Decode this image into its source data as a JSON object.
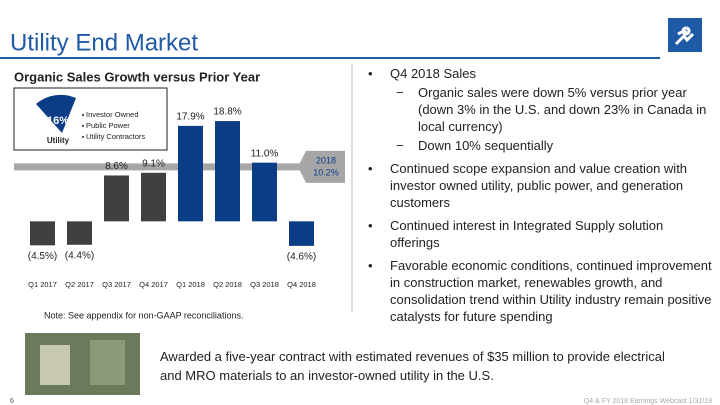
{
  "header": {
    "title": "Utility End Market",
    "page_number": "6",
    "footer": "Q4 & FY 2018 Earnings Webcast 1/31/19"
  },
  "chart_data": {
    "type": "bar",
    "title": "Organic Sales Growth versus Prior Year",
    "categories": [
      "Q1 2017",
      "Q2 2017",
      "Q3 2017",
      "Q4 2017",
      "Q1 2018",
      "Q2 2018",
      "Q3 2018",
      "Q4 2018"
    ],
    "values": [
      -4.5,
      -4.4,
      8.6,
      9.1,
      17.9,
      18.8,
      11.0,
      -4.6
    ],
    "value_labels": [
      "(4.5%)",
      "(4.4%)",
      "8.6%",
      "9.1%",
      "17.9%",
      "18.8%",
      "11.0%",
      "(4.6%)"
    ],
    "colors": [
      "#404040",
      "#404040",
      "#404040",
      "#404040",
      "#0b3d86",
      "#0b3d86",
      "#0b3d86",
      "#0b3d86"
    ],
    "ylim": [
      -8,
      22
    ],
    "reference_line": {
      "label": "2018",
      "value": 10.2,
      "value_label": "10.2%",
      "color": "#a6a6a6"
    },
    "note": "Note: See appendix for non-GAAP reconciliations."
  },
  "inset": {
    "share_label": "16%",
    "name": "Utility",
    "items": [
      "Investor Owned",
      "Public Power",
      "Utility Contractors"
    ]
  },
  "bullets": [
    {
      "text": "Q4 2018 Sales",
      "sub": [
        "Organic sales were down 5% versus prior year (down 3% in the U.S. and down 23% in Canada in local currency)",
        "Down 10% sequentially"
      ]
    },
    {
      "text": "Continued scope expansion and value creation with investor owned utility, public power, and generation customers"
    },
    {
      "text": "Continued interest in Integrated Supply solution offerings"
    },
    {
      "text": "Favorable economic conditions, continued improvement in construction market, renewables growth, and consolidation trend within Utility industry remain positive catalysts for future spending"
    }
  ],
  "callout": "Awarded a five-year contract with estimated revenues of $35 million to provide electrical and MRO materials to an investor-owned utility in the U.S."
}
